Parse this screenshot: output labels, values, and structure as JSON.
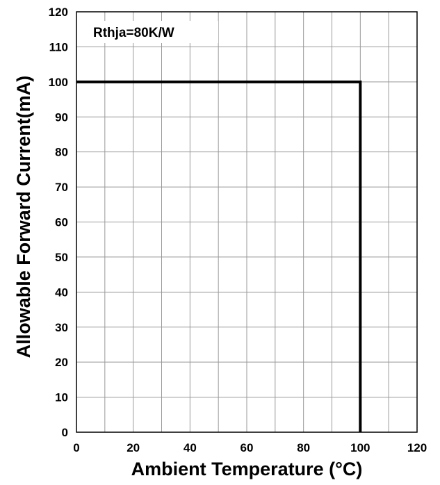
{
  "chart_data": {
    "type": "line",
    "title": "",
    "xlabel": "Ambient Temperature (°C)",
    "ylabel": "Allowable Forward Current(mA)",
    "xlim": [
      0,
      120
    ],
    "ylim": [
      0,
      120
    ],
    "x_ticks": [
      0,
      20,
      40,
      60,
      80,
      100,
      120
    ],
    "y_ticks": [
      0,
      10,
      20,
      30,
      40,
      50,
      60,
      70,
      80,
      90,
      100,
      110,
      120
    ],
    "x_grid_step": 10,
    "y_grid_step": 10,
    "grid": true,
    "legend": "none",
    "annotation": "Rthja=80K/W",
    "series": [
      {
        "color": "#000000",
        "x": [
          0,
          100,
          100
        ],
        "y": [
          100,
          100,
          0
        ]
      }
    ]
  }
}
